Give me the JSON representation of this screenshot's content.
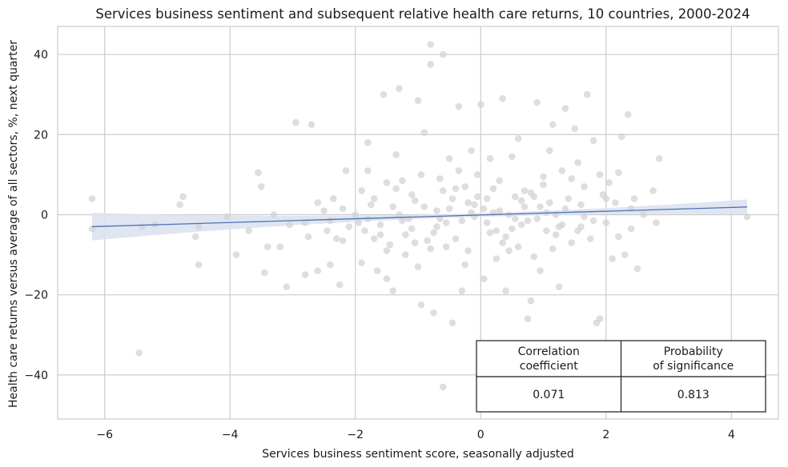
{
  "chart_data": {
    "type": "scatter",
    "title": "Services business sentiment and subsequent relative health care returns, 10 countries, 2000-2024",
    "xlabel": "Services business sentiment score, seasonally adjusted",
    "ylabel": "Health care returns versus average of all sectors, %, next quarter",
    "xlim": [
      -6.75,
      4.75
    ],
    "ylim": [
      -51,
      47
    ],
    "xticks": [
      -6,
      -4,
      -2,
      0,
      2,
      4
    ],
    "xtick_labels": [
      "−6",
      "−4",
      "−2",
      "0",
      "2",
      "4"
    ],
    "yticks": [
      -40,
      -20,
      0,
      20,
      40
    ],
    "ytick_labels": [
      "−40",
      "−20",
      "0",
      "20",
      "40"
    ],
    "grid": true,
    "point_color": "#d3d3d3",
    "line_color": "#4c72b0",
    "band_color": "#dce3f1",
    "regression": {
      "slope": 0.47,
      "intercept": -0.07,
      "x_range": [
        -6.2,
        4.25
      ],
      "band_start": [
        -6.3,
        0.0
      ],
      "band_end": [
        -2.2,
        4.0
      ],
      "band_center": [
        0.0,
        0.0
      ],
      "band_mid": [
        -1.3,
        1.4
      ]
    },
    "points": [
      [
        -6.2,
        4
      ],
      [
        -6.2,
        -3.5
      ],
      [
        -5.45,
        -34.5
      ],
      [
        -5.4,
        -3
      ],
      [
        -5.2,
        -2.5
      ],
      [
        -4.75,
        4.5
      ],
      [
        -4.8,
        2.5
      ],
      [
        -4.55,
        -5.5
      ],
      [
        -4.5,
        -12.5
      ],
      [
        -4.5,
        -3
      ],
      [
        -4.05,
        -0.5
      ],
      [
        -3.9,
        -10
      ],
      [
        -3.7,
        -4
      ],
      [
        -3.55,
        10.5
      ],
      [
        -3.5,
        7
      ],
      [
        -3.45,
        -14.5
      ],
      [
        -3.4,
        -8
      ],
      [
        -3.3,
        0
      ],
      [
        -3.2,
        -8
      ],
      [
        -3.1,
        -18
      ],
      [
        -3.05,
        -2.5
      ],
      [
        -2.95,
        23
      ],
      [
        -2.8,
        -15
      ],
      [
        -2.75,
        -5.5
      ],
      [
        -2.7,
        22.5
      ],
      [
        -2.6,
        -14
      ],
      [
        -2.5,
        1
      ],
      [
        -2.45,
        -4
      ],
      [
        -2.4,
        -12.5
      ],
      [
        -2.35,
        4
      ],
      [
        -2.3,
        -6
      ],
      [
        -2.25,
        -17.5
      ],
      [
        -2.2,
        -6.5
      ],
      [
        -2.15,
        11
      ],
      [
        -2.1,
        -3
      ],
      [
        -2.0,
        0
      ],
      [
        -1.95,
        -2
      ],
      [
        -1.9,
        -12
      ],
      [
        -1.85,
        -4
      ],
      [
        -1.8,
        18
      ],
      [
        -1.8,
        -1
      ],
      [
        -1.75,
        2.5
      ],
      [
        -1.7,
        4
      ],
      [
        -1.65,
        -14
      ],
      [
        -1.6,
        -5
      ],
      [
        -1.55,
        30
      ],
      [
        -1.5,
        -16
      ],
      [
        -1.5,
        8
      ],
      [
        -1.45,
        -7.5
      ],
      [
        -1.4,
        -19
      ],
      [
        -1.35,
        15
      ],
      [
        -1.3,
        0
      ],
      [
        -1.3,
        31.5
      ],
      [
        -1.25,
        8.5
      ],
      [
        -1.2,
        -10
      ],
      [
        -1.15,
        -1
      ],
      [
        -1.1,
        -3.5
      ],
      [
        -1.05,
        3.5
      ],
      [
        -1.0,
        28.5
      ],
      [
        -1.0,
        -13
      ],
      [
        -0.95,
        -22.5
      ],
      [
        -0.9,
        20.5
      ],
      [
        -0.85,
        -6.5
      ],
      [
        -0.8,
        37.5
      ],
      [
        -0.8,
        42.5
      ],
      [
        -0.75,
        -24.5
      ],
      [
        -0.7,
        1
      ],
      [
        -0.65,
        9
      ],
      [
        -0.6,
        40
      ],
      [
        -0.6,
        -43
      ],
      [
        -0.55,
        -8
      ],
      [
        -0.5,
        14
      ],
      [
        -0.45,
        -27
      ],
      [
        -0.4,
        6.5
      ],
      [
        -0.35,
        27
      ],
      [
        -0.3,
        -19
      ],
      [
        -0.25,
        -12.5
      ],
      [
        -0.2,
        3
      ],
      [
        -0.15,
        16
      ],
      [
        -0.1,
        -0.5
      ],
      [
        -0.05,
        10
      ],
      [
        0.0,
        27.5
      ],
      [
        0.05,
        -16
      ],
      [
        0.1,
        4
      ],
      [
        0.15,
        14
      ],
      [
        0.2,
        0.5
      ],
      [
        0.25,
        -4
      ],
      [
        0.3,
        8.5
      ],
      [
        0.35,
        29
      ],
      [
        0.4,
        -19
      ],
      [
        0.45,
        -9
      ],
      [
        0.5,
        14.5
      ],
      [
        0.55,
        -1
      ],
      [
        0.6,
        19
      ],
      [
        0.65,
        -2.5
      ],
      [
        0.7,
        6
      ],
      [
        0.75,
        -26
      ],
      [
        0.8,
        -21.5
      ],
      [
        0.85,
        4.5
      ],
      [
        0.9,
        28
      ],
      [
        0.95,
        -14
      ],
      [
        1.0,
        9.5
      ],
      [
        1.05,
        -4
      ],
      [
        1.1,
        16
      ],
      [
        1.15,
        22.5
      ],
      [
        1.2,
        0
      ],
      [
        1.25,
        -18
      ],
      [
        1.3,
        11
      ],
      [
        1.35,
        26.5
      ],
      [
        1.4,
        4
      ],
      [
        1.45,
        -7
      ],
      [
        1.5,
        21.5
      ],
      [
        1.55,
        13
      ],
      [
        1.6,
        -3
      ],
      [
        1.65,
        7
      ],
      [
        1.7,
        30
      ],
      [
        1.75,
        -6
      ],
      [
        1.8,
        18.5
      ],
      [
        1.85,
        -27
      ],
      [
        1.9,
        -26
      ],
      [
        1.95,
        5
      ],
      [
        2.0,
        -2
      ],
      [
        2.05,
        8
      ],
      [
        2.1,
        -11
      ],
      [
        2.15,
        3
      ],
      [
        2.2,
        10.5
      ],
      [
        2.25,
        19.5
      ],
      [
        2.3,
        -10
      ],
      [
        2.35,
        25
      ],
      [
        2.4,
        1.5
      ],
      [
        2.5,
        -13.5
      ],
      [
        2.6,
        0
      ],
      [
        2.75,
        6
      ],
      [
        2.8,
        -2
      ],
      [
        2.85,
        14
      ],
      [
        4.25,
        -0.5
      ],
      [
        -0.9,
        2
      ],
      [
        -0.7,
        -3
      ],
      [
        -0.5,
        1.5
      ],
      [
        -0.3,
        -1.5
      ],
      [
        -0.1,
        2.5
      ],
      [
        0.1,
        -2
      ],
      [
        0.3,
        1
      ],
      [
        0.5,
        -3.5
      ],
      [
        0.7,
        2
      ],
      [
        0.9,
        -1
      ],
      [
        1.1,
        3
      ],
      [
        1.3,
        -2.5
      ],
      [
        -1.1,
        5
      ],
      [
        -1.2,
        -5
      ],
      [
        -0.6,
        6
      ],
      [
        -0.4,
        -6
      ],
      [
        0.2,
        6.5
      ],
      [
        0.4,
        -5.5
      ],
      [
        0.8,
        5.5
      ],
      [
        1.2,
        -5
      ],
      [
        -0.8,
        -8.5
      ],
      [
        -0.2,
        -9
      ],
      [
        0.6,
        -8
      ],
      [
        1.0,
        7.5
      ],
      [
        -1.4,
        2
      ],
      [
        -1.6,
        -2.5
      ],
      [
        1.6,
        2.5
      ],
      [
        1.8,
        -1.5
      ],
      [
        -0.95,
        10
      ],
      [
        -0.35,
        11
      ],
      [
        0.25,
        -11
      ],
      [
        0.85,
        -10.5
      ],
      [
        1.45,
        9
      ],
      [
        -1.5,
        -9
      ],
      [
        -0.65,
        -1
      ],
      [
        -0.15,
        0.5
      ],
      [
        0.45,
        0
      ],
      [
        1.05,
        0.5
      ],
      [
        1.65,
        -0.5
      ],
      [
        -1.25,
        -1.5
      ],
      [
        -0.45,
        4
      ],
      [
        0.15,
        -4.5
      ],
      [
        0.65,
        3.5
      ],
      [
        1.25,
        -3
      ],
      [
        -0.75,
        -4.5
      ],
      [
        -0.05,
        4.5
      ],
      [
        0.55,
        4.5
      ],
      [
        1.35,
        1.5
      ],
      [
        -1.05,
        -7
      ],
      [
        -0.25,
        7
      ],
      [
        0.35,
        -7
      ],
      [
        0.95,
        2
      ],
      [
        1.55,
        -4
      ],
      [
        -1.35,
        6.5
      ],
      [
        -0.55,
        -2
      ],
      [
        0.05,
        1.5
      ],
      [
        0.75,
        -1.5
      ],
      [
        1.15,
        -8.5
      ],
      [
        -1.7,
        -6
      ],
      [
        -1.9,
        6
      ],
      [
        2.0,
        4
      ],
      [
        2.2,
        -5.5
      ],
      [
        -2.2,
        1.5
      ],
      [
        -2.4,
        -1.5
      ],
      [
        -2.6,
        3
      ],
      [
        -2.8,
        -2
      ],
      [
        2.4,
        -3.5
      ],
      [
        2.45,
        4
      ],
      [
        1.9,
        10
      ],
      [
        -1.8,
        11
      ]
    ],
    "table": {
      "headers": [
        "Correlation\ncoefficient",
        "Probability\nof significance"
      ],
      "values": [
        "0.071",
        "0.813"
      ]
    }
  }
}
